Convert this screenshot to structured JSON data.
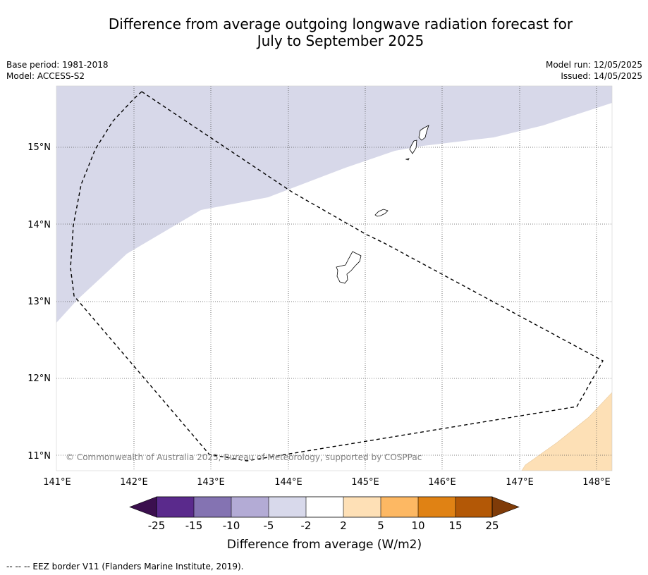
{
  "header": {
    "title_line1": "Difference from average outgoing longwave radiation forecast for",
    "title_line2": "July to September 2025",
    "base_period": "Base period: 1981-2018",
    "model": "Model: ACCESS-S2",
    "model_run": "Model run: 12/05/2025",
    "issued": "Issued: 14/05/2025"
  },
  "map": {
    "lon_labels": [
      "141°E",
      "142°E",
      "143°E",
      "144°E",
      "145°E",
      "146°E",
      "147°E",
      "148°E"
    ],
    "lat_labels": [
      "15°N",
      "14°N",
      "13°N",
      "12°N",
      "11°N"
    ],
    "copyright": "© Commonwealth of Australia 2025, Bureau of Meteorology, supported by COSPPac",
    "colors": {
      "neg_band": "#d7d8e9",
      "pos_band": "#fde0b6",
      "land_outline": "#000000",
      "eez_line": "#000000"
    }
  },
  "colorbar": {
    "labels": [
      "-25",
      "-15",
      "-10",
      "-5",
      "-2",
      "2",
      "5",
      "10",
      "15",
      "25"
    ],
    "colors": [
      "#3b0f4e",
      "#5a2a8c",
      "#8473b2",
      "#b3abd5",
      "#d8d9eb",
      "#ffffff",
      "#fee0b6",
      "#fdb863",
      "#e08214",
      "#b35806",
      "#7f3b08"
    ],
    "title": "Difference from average (W/m2)"
  },
  "footnote": "--  --  -- EEZ border V11 (Flanders Marine Institute, 2019)."
}
